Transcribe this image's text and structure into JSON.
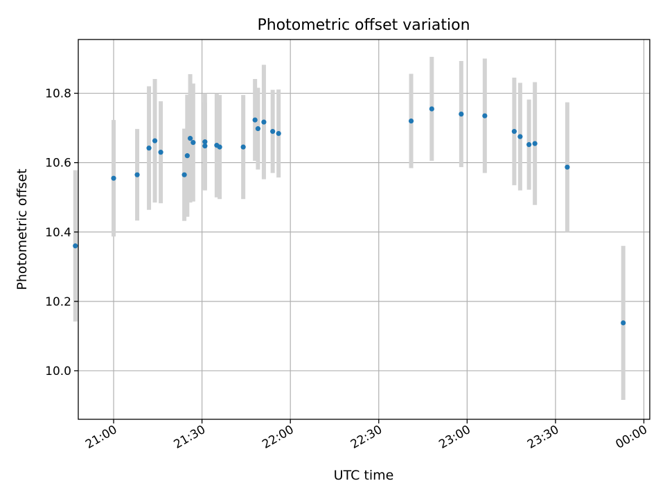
{
  "chart_data": {
    "type": "scatter",
    "title": "Photometric offset variation",
    "xlabel": "UTC time",
    "ylabel": "Photometric offset",
    "x_unit": "time",
    "xlim": [
      "20:48",
      "24:02"
    ],
    "ylim": [
      9.86,
      10.955
    ],
    "x_ticks": [
      {
        "label": "21:00",
        "value": "21:00"
      },
      {
        "label": "21:30",
        "value": "21:30"
      },
      {
        "label": "22:00",
        "value": "22:00"
      },
      {
        "label": "22:30",
        "value": "22:30"
      },
      {
        "label": "23:00",
        "value": "23:00"
      },
      {
        "label": "23:30",
        "value": "23:30"
      },
      {
        "label": "00:00",
        "value": "24:00"
      }
    ],
    "y_ticks": [
      10.0,
      10.2,
      10.4,
      10.6,
      10.8
    ],
    "y_tick_labels": [
      "10.0",
      "10.2",
      "10.4",
      "10.6",
      "10.8"
    ],
    "grid": true,
    "marker_color": "#1f77b4",
    "errorbar_color": "#d3d3d3",
    "points": [
      {
        "t": "20:47",
        "y": 10.36,
        "err": 0.218
      },
      {
        "t": "21:00",
        "y": 10.555,
        "err": 0.168
      },
      {
        "t": "21:08",
        "y": 10.565,
        "err": 0.132
      },
      {
        "t": "21:12",
        "y": 10.642,
        "err": 0.178
      },
      {
        "t": "21:14",
        "y": 10.663,
        "err": 0.178
      },
      {
        "t": "21:16",
        "y": 10.63,
        "err": 0.147
      },
      {
        "t": "21:24",
        "y": 10.565,
        "err": 0.133
      },
      {
        "t": "21:25",
        "y": 10.62,
        "err": 0.176
      },
      {
        "t": "21:26",
        "y": 10.67,
        "err": 0.185
      },
      {
        "t": "21:27",
        "y": 10.658,
        "err": 0.17
      },
      {
        "t": "21:31",
        "y": 10.648,
        "err": 0.125
      },
      {
        "t": "21:31",
        "y": 10.66,
        "err": 0.14
      },
      {
        "t": "21:35",
        "y": 10.65,
        "err": 0.15
      },
      {
        "t": "21:36",
        "y": 10.645,
        "err": 0.15
      },
      {
        "t": "21:44",
        "y": 10.645,
        "err": 0.15
      },
      {
        "t": "21:48",
        "y": 10.723,
        "err": 0.118
      },
      {
        "t": "21:49",
        "y": 10.698,
        "err": 0.118
      },
      {
        "t": "21:51",
        "y": 10.717,
        "err": 0.165
      },
      {
        "t": "21:54",
        "y": 10.69,
        "err": 0.12
      },
      {
        "t": "21:56",
        "y": 10.684,
        "err": 0.127
      },
      {
        "t": "22:41",
        "y": 10.72,
        "err": 0.136
      },
      {
        "t": "22:48",
        "y": 10.755,
        "err": 0.15
      },
      {
        "t": "22:58",
        "y": 10.74,
        "err": 0.153
      },
      {
        "t": "23:06",
        "y": 10.735,
        "err": 0.165
      },
      {
        "t": "23:16",
        "y": 10.69,
        "err": 0.155
      },
      {
        "t": "23:18",
        "y": 10.675,
        "err": 0.155
      },
      {
        "t": "23:21",
        "y": 10.652,
        "err": 0.13
      },
      {
        "t": "23:23",
        "y": 10.655,
        "err": 0.177
      },
      {
        "t": "23:34",
        "y": 10.587,
        "err": 0.187
      },
      {
        "t": "23:53",
        "y": 10.138,
        "err": 0.222
      }
    ]
  }
}
